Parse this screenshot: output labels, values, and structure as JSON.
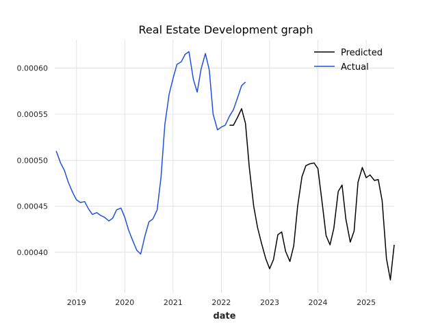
{
  "chart_data": {
    "type": "line",
    "title": "Real Estate Development graph",
    "xlabel": "date",
    "ylabel": "",
    "xlim": [
      2018.55,
      2025.58
    ],
    "ylim": [
      0.000356,
      0.000631
    ],
    "grid": true,
    "legend_position": "top-right",
    "x_ticks": [
      2019,
      2020,
      2021,
      2022,
      2023,
      2024,
      2025
    ],
    "x_tick_labels": [
      "2019",
      "2020",
      "2021",
      "2022",
      "2023",
      "2024",
      "2025"
    ],
    "y_ticks": [
      0.0004,
      0.00045,
      0.0005,
      0.00055,
      0.0006
    ],
    "y_tick_labels": [
      "0.00040",
      "0.00045",
      "0.00050",
      "0.00055",
      "0.00060"
    ],
    "series": [
      {
        "name": "Predicted",
        "color": "#000000",
        "x": [
          2022.17,
          2022.25,
          2022.33,
          2022.42,
          2022.5,
          2022.58,
          2022.67,
          2022.75,
          2022.83,
          2022.92,
          2023.0,
          2023.08,
          2023.17,
          2023.25,
          2023.33,
          2023.42,
          2023.5,
          2023.58,
          2023.67,
          2023.75,
          2023.83,
          2023.92,
          2024.0,
          2024.08,
          2024.17,
          2024.25,
          2024.33,
          2024.42,
          2024.5,
          2024.58,
          2024.67,
          2024.75,
          2024.83,
          2024.92,
          2025.0,
          2025.08,
          2025.17,
          2025.25,
          2025.33,
          2025.42,
          2025.5,
          2025.58
        ],
        "values": [
          0.000538,
          0.000538,
          0.000546,
          0.000556,
          0.00054,
          0.000492,
          0.00045,
          0.000427,
          0.00041,
          0.000393,
          0.000382,
          0.000392,
          0.000419,
          0.000422,
          0.000401,
          0.00039,
          0.000407,
          0.00045,
          0.000482,
          0.000494,
          0.000496,
          0.000497,
          0.000491,
          0.000457,
          0.000418,
          0.000408,
          0.000426,
          0.000466,
          0.000473,
          0.000436,
          0.000411,
          0.000423,
          0.000476,
          0.000492,
          0.000481,
          0.000484,
          0.000478,
          0.000479,
          0.000456,
          0.000393,
          0.00037,
          0.000408
        ]
      },
      {
        "name": "Actual",
        "color": "#1f4fe0",
        "x": [
          2018.58,
          2018.67,
          2018.75,
          2018.83,
          2018.92,
          2019.0,
          2019.08,
          2019.17,
          2019.25,
          2019.33,
          2019.42,
          2019.5,
          2019.58,
          2019.67,
          2019.75,
          2019.83,
          2019.92,
          2020.0,
          2020.08,
          2020.17,
          2020.25,
          2020.33,
          2020.42,
          2020.5,
          2020.58,
          2020.67,
          2020.75,
          2020.83,
          2020.92,
          2021.0,
          2021.08,
          2021.17,
          2021.25,
          2021.33,
          2021.42,
          2021.5,
          2021.58,
          2021.67,
          2021.75,
          2021.83,
          2021.92,
          2022.0,
          2022.08,
          2022.17,
          2022.25,
          2022.33,
          2022.42,
          2022.5
        ],
        "values": [
          0.00051,
          0.000497,
          0.000489,
          0.000476,
          0.000465,
          0.000457,
          0.000454,
          0.000455,
          0.000447,
          0.000441,
          0.000443,
          0.00044,
          0.000438,
          0.000434,
          0.000437,
          0.000446,
          0.000448,
          0.000438,
          0.000424,
          0.000412,
          0.000402,
          0.000398,
          0.000418,
          0.000433,
          0.000436,
          0.000446,
          0.000481,
          0.000539,
          0.000572,
          0.000589,
          0.000604,
          0.000607,
          0.000615,
          0.000618,
          0.000588,
          0.000574,
          0.000599,
          0.000616,
          0.000598,
          0.00055,
          0.000533,
          0.000536,
          0.000538,
          0.000548,
          0.000555,
          0.000567,
          0.000581,
          0.000585
        ]
      }
    ]
  }
}
